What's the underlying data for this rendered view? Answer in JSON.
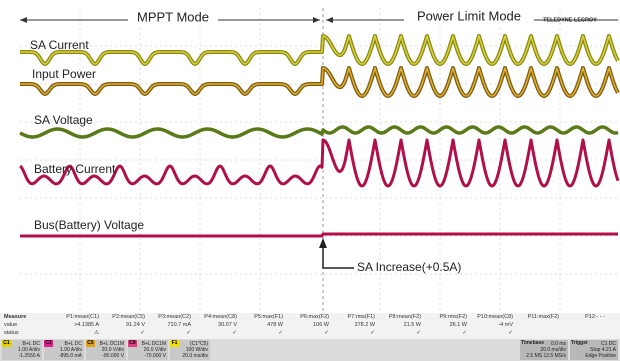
{
  "modes": [
    "MPPT Mode",
    "Power Limit Mode"
  ],
  "brand": "TELEDYNE LECROY",
  "trace_labels": [
    "SA Current",
    "Input Power",
    "SA Voltage",
    "Battery Current",
    "Bus(Battery) Voltage"
  ],
  "annotation": "SA Increase(+0.5A)",
  "measure": {
    "row_labels": [
      "Measure",
      "value",
      "status"
    ],
    "columns": [
      {
        "name": "P1:mean(C1)",
        "value": ">4.1385 A",
        "status": "⚠"
      },
      {
        "name": "P2:mean(C5)",
        "value": "91.24 V",
        "status": "✓"
      },
      {
        "name": "P3:mean(C2)",
        "value": "710.7 mA",
        "status": "✓"
      },
      {
        "name": "P4:mean(C8)",
        "value": "30.07 V",
        "status": "✓"
      },
      {
        "name": "P5:max(F1)",
        "value": "478 W",
        "status": "✓"
      },
      {
        "name": "P6:max(F2)",
        "value": "106 W",
        "status": "✓"
      },
      {
        "name": "P7:rms(F1)",
        "value": "378.2 W",
        "status": "✓"
      },
      {
        "name": "P8:mean(F2)",
        "value": "21.5 W",
        "status": "✓"
      },
      {
        "name": "P9:rms(F2)",
        "value": "26.1 W",
        "status": "✓"
      },
      {
        "name": "P10:mean(C8)",
        "value": "-4 mV",
        "status": "✓"
      },
      {
        "name": "P11:max(F2)",
        "value": "",
        "status": ""
      },
      {
        "name": "P12:- - -",
        "value": "",
        "status": ""
      }
    ]
  },
  "channels": [
    {
      "tag": "C1",
      "color": "#e0d000",
      "lines": [
        "B+L DC",
        "1.00 A/div",
        "-1.2550 A"
      ]
    },
    {
      "tag": "C2",
      "color": "#e0208a",
      "lines": [
        "B+L DC",
        "1.00 A/div",
        "-895.0 mA"
      ]
    },
    {
      "tag": "C5",
      "color": "#e0a020",
      "lines": [
        "B+L DC1M",
        "20.0 V/div",
        "-80.000 V"
      ]
    },
    {
      "tag": "C8",
      "color": "#e04080",
      "lines": [
        "B+L DC1M",
        "20.0 V/div",
        "-70.000 V"
      ]
    },
    {
      "tag": "F1",
      "color": "#f0e000",
      "lines": [
        "(C1*C5)",
        "100 W/div",
        "20.0 ms/div"
      ]
    }
  ],
  "timebase": {
    "title": "Timebase",
    "lines": [
      "0.0 ms",
      "20.0 ms/div",
      "2.5 MS  12.5 MS/s"
    ]
  },
  "trigger": {
    "title": "Trigger",
    "lines": [
      "C1 DC",
      "Stop  4.21 A",
      "Edge  Positive"
    ]
  }
}
